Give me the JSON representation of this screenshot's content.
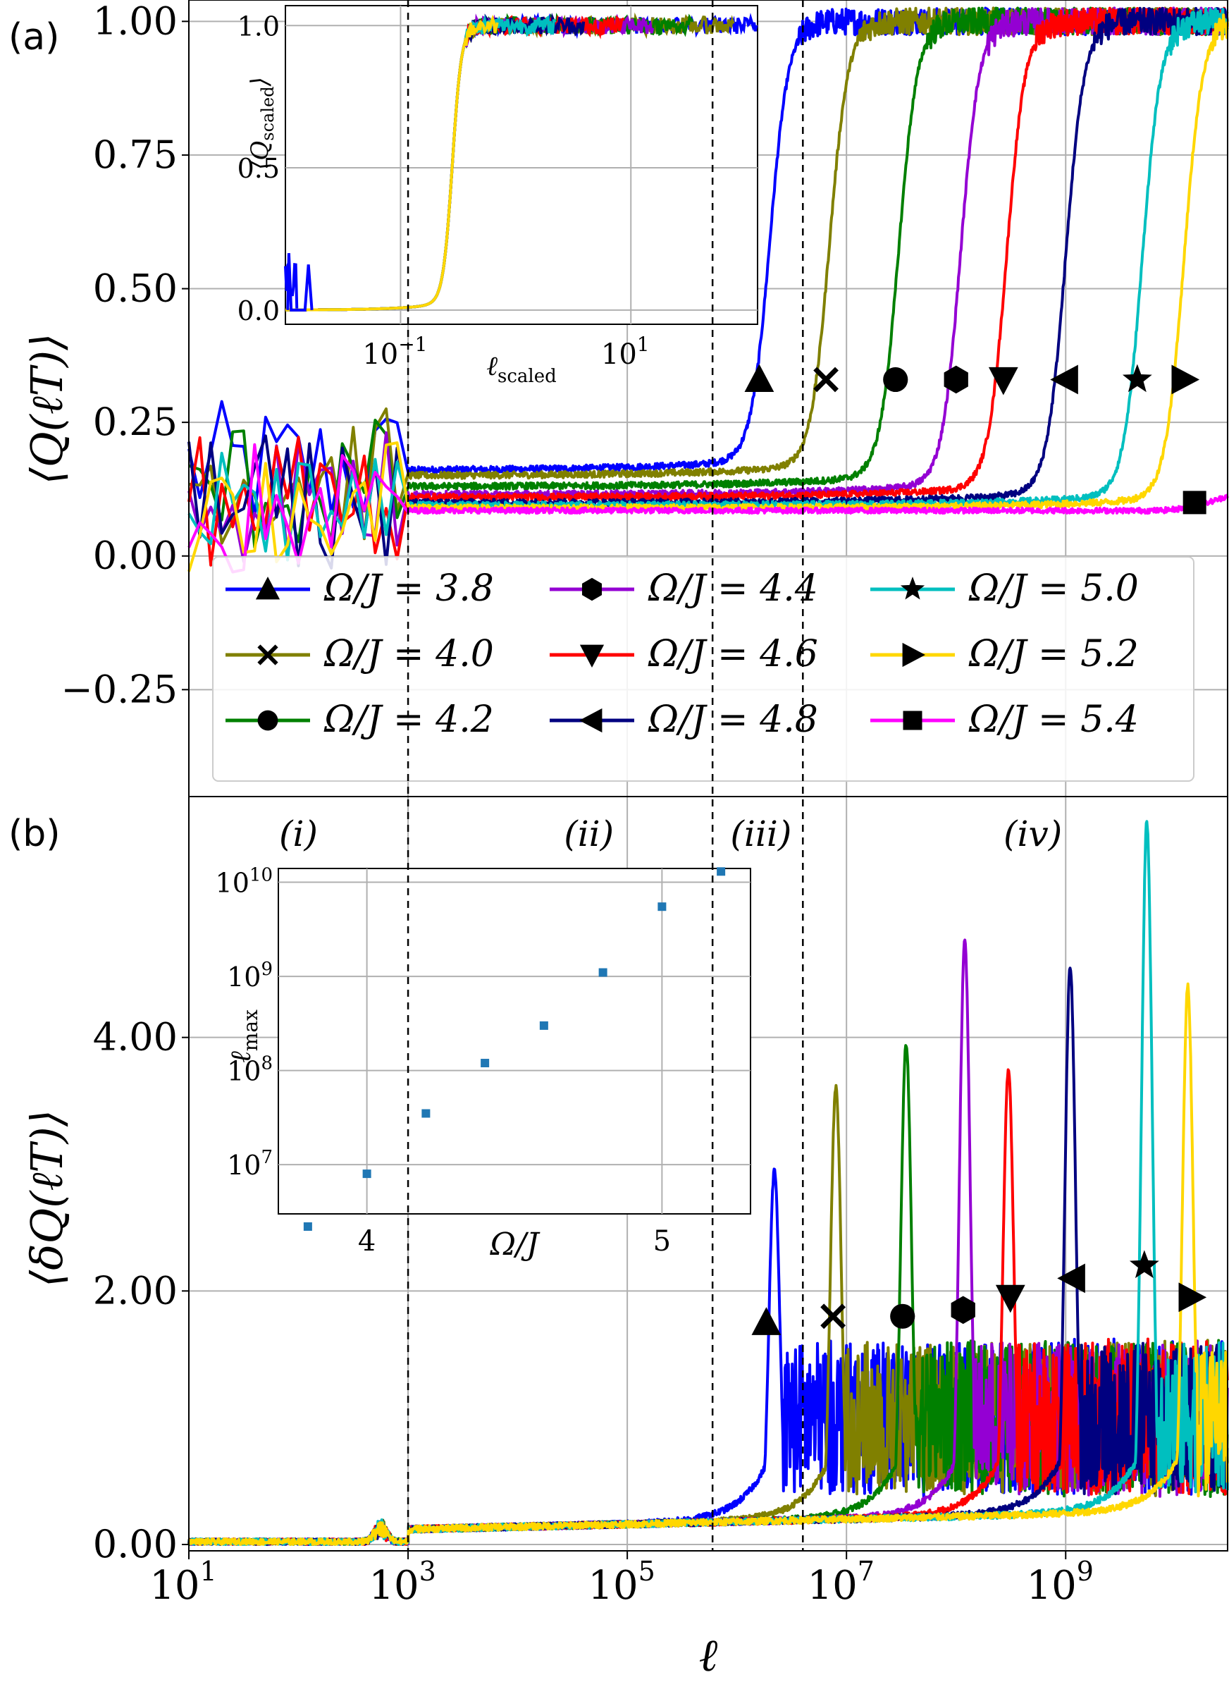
{
  "panel_a_label": "(a)",
  "panel_b_label": "(b)",
  "ylabel_a": "⟨Q(ℓT)⟩",
  "ylabel_b": "⟨δQ(ℓT)⟩",
  "xlabel": "ℓ",
  "x_ticks": [
    {
      "base": "10",
      "exp": "1",
      "value": 1
    },
    {
      "base": "10",
      "exp": "3",
      "value": 3
    },
    {
      "base": "10",
      "exp": "5",
      "value": 5
    },
    {
      "base": "10",
      "exp": "7",
      "value": 7
    },
    {
      "base": "10",
      "exp": "9",
      "value": 9
    }
  ],
  "ya_ticks": [
    {
      "label": "1.00",
      "value": 1.0
    },
    {
      "label": "0.75",
      "value": 0.75
    },
    {
      "label": "0.50",
      "value": 0.5
    },
    {
      "label": "0.25",
      "value": 0.25
    },
    {
      "label": "0.00",
      "value": 0.0
    },
    {
      "label": "−0.25",
      "value": -0.25
    }
  ],
  "yb_ticks": [
    {
      "label": "4.00",
      "value": 4.0
    },
    {
      "label": "2.00",
      "value": 2.0
    },
    {
      "label": "0.00",
      "value": 0.0
    }
  ],
  "regions": [
    {
      "label": "(i)",
      "x_log": 2.0
    },
    {
      "label": "(ii)",
      "x_log": 4.65
    },
    {
      "label": "(iii)",
      "x_log": 6.22
    },
    {
      "label": "(iv)",
      "x_log": 8.7
    }
  ],
  "inset_a": {
    "ylabel_base": "Q",
    "ylabel_sub": "scaled",
    "xlabel_base": "ℓ",
    "xlabel_sub": "scaled",
    "x_ticks": [
      {
        "base": "10",
        "exp": "−1",
        "value": -1
      },
      {
        "base": "10",
        "exp": "1",
        "value": 1
      }
    ],
    "y_ticks": [
      {
        "label": "1.0",
        "value": 1.0
      },
      {
        "label": "0.5",
        "value": 0.5
      },
      {
        "label": "0.0",
        "value": 0.0
      }
    ]
  },
  "inset_b": {
    "ylabel_base": "ℓ",
    "ylabel_sub": "max",
    "xlabel": "Ω/J",
    "x_ticks": [
      {
        "label": "4",
        "value": 4
      },
      {
        "label": "5",
        "value": 5
      }
    ],
    "y_ticks": [
      {
        "base": "10",
        "exp": "7",
        "value": 7
      },
      {
        "base": "10",
        "exp": "8",
        "value": 8
      },
      {
        "base": "10",
        "exp": "9",
        "value": 9
      },
      {
        "base": "10",
        "exp": "10",
        "value": 10
      }
    ],
    "point_color": "#1f77b4"
  },
  "chart_data": [
    {
      "type": "line",
      "panel": "a",
      "xscale": "log",
      "xlim": [
        10,
        30000000000
      ],
      "ylim": [
        -0.45,
        1.04
      ],
      "ylabel": "⟨Q(ℓT)⟩",
      "grid": true,
      "legend_position": "lower-right, 3 columns",
      "dashed_vlines_x": [
        1000,
        600000,
        4000000
      ],
      "series": [
        {
          "name": "Ω/J = 3.8",
          "color": "#0000ff",
          "marker": "triangle-up",
          "plateau": 0.16,
          "switch_x": 2000000,
          "marker_x": 1600000,
          "marker_y": 0.33
        },
        {
          "name": "Ω/J = 4.0",
          "color": "#808000",
          "marker": "x",
          "plateau": 0.15,
          "switch_x": 7000000,
          "marker_x": 6500000,
          "marker_y": 0.33
        },
        {
          "name": "Ω/J = 4.2",
          "color": "#008000",
          "marker": "circle",
          "plateau": 0.13,
          "switch_x": 30000000,
          "marker_x": 28000000,
          "marker_y": 0.33
        },
        {
          "name": "Ω/J = 4.4",
          "color": "#9400d3",
          "marker": "hexagon",
          "plateau": 0.115,
          "switch_x": 110000000,
          "marker_x": 100000000,
          "marker_y": 0.33
        },
        {
          "name": "Ω/J = 4.6",
          "color": "#ff0000",
          "marker": "triangle-down",
          "plateau": 0.11,
          "switch_x": 290000000,
          "marker_x": 270000000,
          "marker_y": 0.33
        },
        {
          "name": "Ω/J = 4.8",
          "color": "#000080",
          "marker": "triangle-left",
          "plateau": 0.1,
          "switch_x": 1000000000,
          "marker_x": 1000000000,
          "marker_y": 0.33
        },
        {
          "name": "Ω/J = 5.0",
          "color": "#00bfbf",
          "marker": "star",
          "plateau": 0.095,
          "switch_x": 5000000000,
          "marker_x": 4500000000,
          "marker_y": 0.33
        },
        {
          "name": "Ω/J = 5.2",
          "color": "#ffd700",
          "marker": "triangle-right",
          "plateau": 0.09,
          "switch_x": 12000000000,
          "marker_x": 12000000000,
          "marker_y": 0.33
        },
        {
          "name": "Ω/J = 5.4",
          "color": "#ff00ff",
          "marker": "square",
          "plateau": 0.085,
          "switch_x": null,
          "marker_x": 15000000000,
          "marker_y": 0.1
        }
      ]
    },
    {
      "type": "line",
      "panel": "b",
      "xscale": "log",
      "xlim": [
        10,
        30000000000
      ],
      "ylim": [
        -0.05,
        5.9
      ],
      "xlabel": "ℓ",
      "ylabel": "⟨δQ(ℓT)⟩",
      "grid": true,
      "series": [
        {
          "name": "Ω/J = 3.8",
          "color": "#0000ff",
          "peak_x": 2200000,
          "peak_y": 2.95,
          "marker_y": 1.75
        },
        {
          "name": "Ω/J = 4.0",
          "color": "#808000",
          "peak_x": 8000000,
          "peak_y": 3.6,
          "marker_y": 1.8
        },
        {
          "name": "Ω/J = 4.2",
          "color": "#008000",
          "peak_x": 35000000,
          "peak_y": 3.95,
          "marker_y": 1.8
        },
        {
          "name": "Ω/J = 4.4",
          "color": "#9400d3",
          "peak_x": 120000000,
          "peak_y": 4.75,
          "marker_y": 1.85
        },
        {
          "name": "Ω/J = 4.6",
          "color": "#ff0000",
          "peak_x": 300000000,
          "peak_y": 3.75,
          "marker_y": 1.95
        },
        {
          "name": "Ω/J = 4.8",
          "color": "#000080",
          "peak_x": 1100000000,
          "peak_y": 4.55,
          "marker_y": 2.1
        },
        {
          "name": "Ω/J = 5.0",
          "color": "#00bfbf",
          "peak_x": 5500000000,
          "peak_y": 5.7,
          "marker_y": 2.2
        },
        {
          "name": "Ω/J = 5.2",
          "color": "#ffd700",
          "peak_x": 13000000000,
          "peak_y": 4.4,
          "marker_y": 1.95
        }
      ]
    },
    {
      "type": "scatter",
      "panel": "b-inset",
      "xlabel": "Ω/J",
      "ylabel": "ℓ_max",
      "yscale": "log",
      "xlim": [
        3.7,
        5.3
      ],
      "ylim": [
        3000000,
        14000000000
      ],
      "x": [
        3.8,
        4.0,
        4.2,
        4.4,
        4.6,
        4.8,
        5.0,
        5.2
      ],
      "y": [
        2200000,
        8000000,
        35000000,
        120000000,
        300000000,
        1100000000,
        5500000000,
        13000000000
      ]
    }
  ]
}
